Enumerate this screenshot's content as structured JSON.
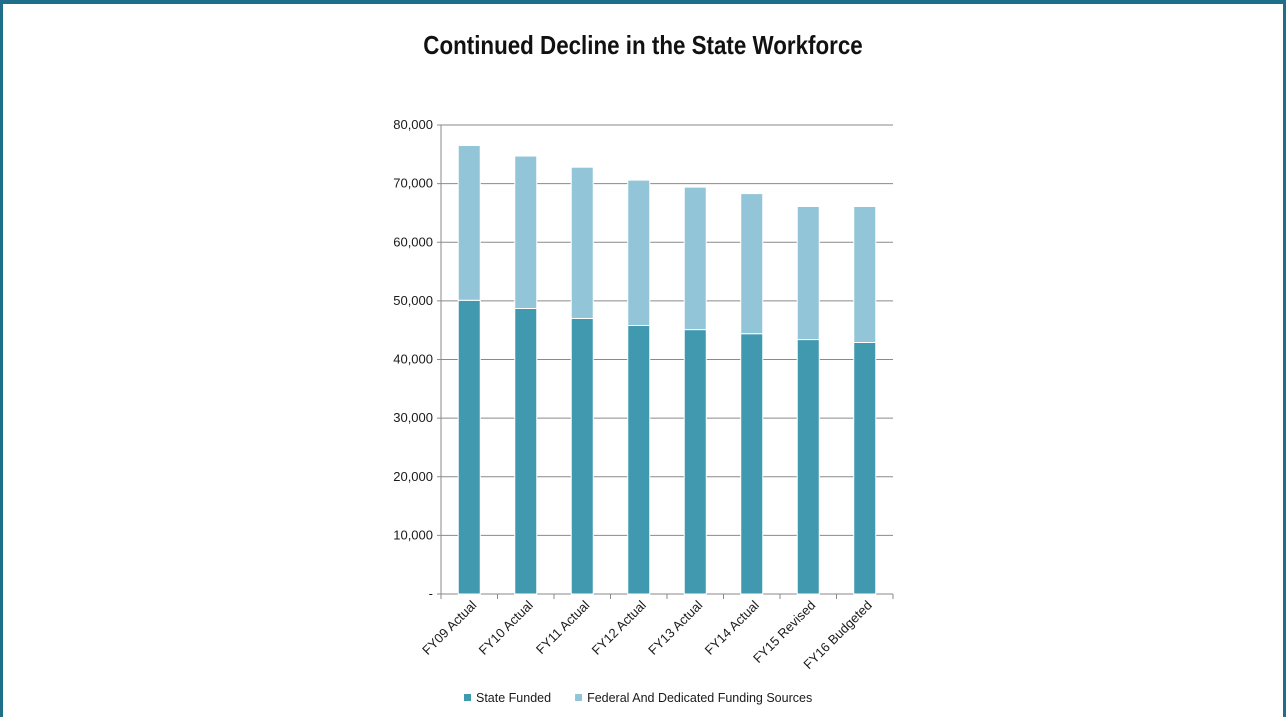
{
  "chart_data": {
    "type": "bar",
    "stacked": true,
    "title": "Continued Decline in the State Workforce",
    "categories": [
      "FY09 Actual",
      "FY10 Actual",
      "FY11 Actual",
      "FY12 Actual",
      "FY13 Actual",
      "FY14 Actual",
      "FY15 Revised",
      "FY16 Budgeted"
    ],
    "series": [
      {
        "name": "State Funded",
        "color": "#4199b0",
        "values": [
          50100,
          48700,
          47000,
          45800,
          45100,
          44400,
          43400,
          42900
        ]
      },
      {
        "name": "Federal And Dedicated Funding Sources",
        "color": "#93c5d8",
        "values": [
          26400,
          26000,
          25800,
          24800,
          24300,
          23900,
          22700,
          23200
        ]
      }
    ],
    "ylim": [
      0,
      80000
    ],
    "yticks": [
      0,
      10000,
      20000,
      30000,
      40000,
      50000,
      60000,
      70000,
      80000
    ],
    "ytick_labels": [
      "-",
      "10,000",
      "20,000",
      "30,000",
      "40,000",
      "50,000",
      "60,000",
      "70,000",
      "80,000"
    ],
    "grid": true,
    "legend": "bottom",
    "xlabel": "",
    "ylabel": ""
  }
}
